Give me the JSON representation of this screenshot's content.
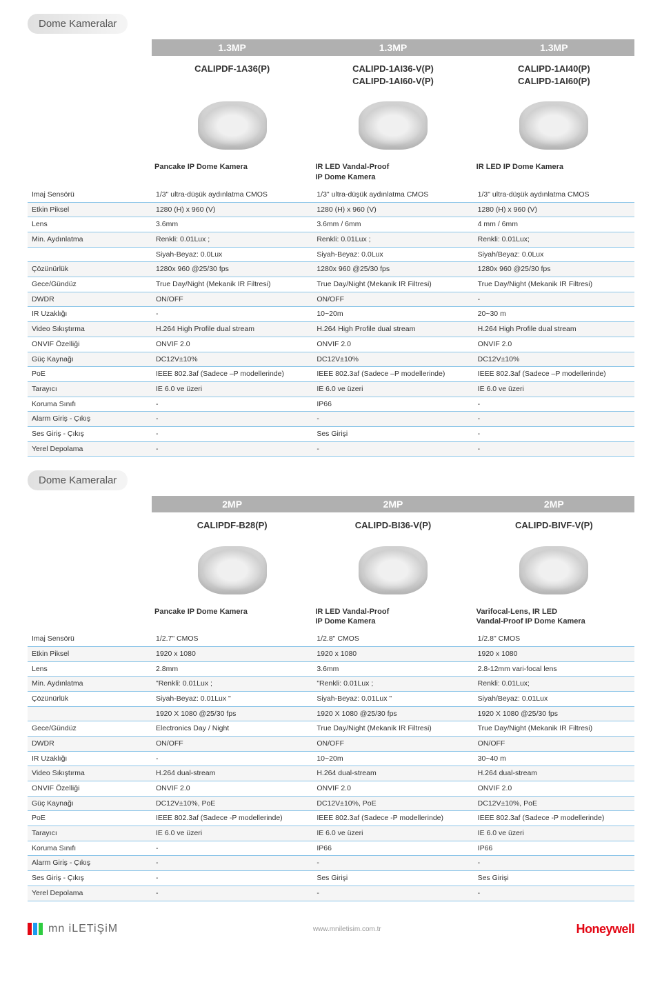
{
  "section1": {
    "title": "Dome Kameralar",
    "mp": [
      "1.3MP",
      "1.3MP",
      "1.3MP"
    ],
    "models": [
      "CALIPDF-1A36(P)",
      "CALIPD-1AI36-V(P)\nCALIPD-1AI60-V(P)",
      "CALIPD-1AI40(P)\nCALIPD-1AI60(P)"
    ],
    "subtitles": [
      "Pancake IP Dome Kamera",
      "IR LED Vandal-Proof\nIP Dome Kamera",
      "IR LED IP Dome Kamera"
    ],
    "rows": [
      [
        "Imaj Sensörü",
        "1/3\" ultra-düşük aydınlatma CMOS",
        "1/3\" ultra-düşük aydınlatma CMOS",
        "1/3\" ultra-düşük aydınlatma CMOS"
      ],
      [
        "Etkin Piksel",
        "1280 (H) x 960 (V)",
        "1280 (H) x 960 (V)",
        "1280 (H) x 960 (V)"
      ],
      [
        "Lens",
        "3.6mm",
        "3.6mm / 6mm",
        "4 mm / 6mm"
      ],
      [
        "Min. Aydınlatma",
        "Renkli: 0.01Lux ;",
        "Renkli: 0.01Lux ;",
        "Renkli: 0.01Lux;"
      ],
      [
        "",
        "Siyah-Beyaz: 0.0Lux",
        "Siyah-Beyaz: 0.0Lux",
        "Siyah/Beyaz: 0.0Lux"
      ],
      [
        "Çözünürlük",
        "1280x 960 @25/30 fps",
        "1280x 960 @25/30 fps",
        "1280x 960 @25/30 fps"
      ],
      [
        "Gece/Gündüz",
        "True Day/Night (Mekanik IR Filtresi)",
        "True Day/Night (Mekanik IR Filtresi)",
        "True Day/Night (Mekanik IR Filtresi)"
      ],
      [
        "DWDR",
        "ON/OFF",
        "ON/OFF",
        "-"
      ],
      [
        "IR Uzaklığı",
        "-",
        "10~20m",
        "20~30 m"
      ],
      [
        "Video Sıkıştırma",
        "H.264 High Profile dual stream",
        "H.264 High Profile dual stream",
        "H.264 High Profile dual stream"
      ],
      [
        "ONVIF Özelliği",
        "ONVIF 2.0",
        "ONVIF 2.0",
        "ONVIF 2.0"
      ],
      [
        "Güç Kaynağı",
        "DC12V±10%",
        "DC12V±10%",
        "DC12V±10%"
      ],
      [
        "PoE",
        "IEEE 802.3af (Sadece –P modellerinde)",
        "IEEE 802.3af (Sadece –P modellerinde)",
        "IEEE 802.3af (Sadece –P modellerinde)"
      ],
      [
        "Tarayıcı",
        "IE 6.0 ve üzeri",
        "IE 6.0 ve üzeri",
        "IE 6.0 ve üzeri"
      ],
      [
        "Koruma Sınıfı",
        "-",
        "IP66",
        "-"
      ],
      [
        "Alarm Giriş - Çıkış",
        "-",
        "-",
        "-"
      ],
      [
        "Ses Giriş - Çıkış",
        "-",
        "Ses Girişi",
        "-"
      ],
      [
        "Yerel Depolama",
        "-",
        "-",
        "-"
      ]
    ]
  },
  "section2": {
    "title": "Dome Kameralar",
    "mp": [
      "2MP",
      "2MP",
      "2MP"
    ],
    "models": [
      "CALIPDF-B28(P)",
      "CALIPD-BI36-V(P)",
      "CALIPD-BIVF-V(P)"
    ],
    "subtitles": [
      "Pancake IP Dome Kamera",
      "IR LED Vandal-Proof\nIP Dome Kamera",
      "Varifocal-Lens, IR LED\nVandal-Proof IP Dome Kamera"
    ],
    "rows": [
      [
        "Imaj Sensörü",
        "1/2.7\" CMOS",
        "1/2.8\" CMOS",
        "1/2.8\" CMOS"
      ],
      [
        "Etkin Piksel",
        "1920 x 1080",
        "1920 x 1080",
        "1920 x 1080"
      ],
      [
        "Lens",
        "2.8mm",
        "3.6mm",
        "2.8-12mm vari-focal lens"
      ],
      [
        "Min. Aydınlatma",
        "\"Renkli: 0.01Lux ;",
        "\"Renkli: 0.01Lux ;",
        "Renkli: 0.01Lux;"
      ],
      [
        "Çözünürlük",
        "Siyah-Beyaz: 0.01Lux \"",
        "Siyah-Beyaz: 0.01Lux \"",
        "Siyah/Beyaz: 0.01Lux"
      ],
      [
        "",
        "1920 X 1080  @25/30 fps",
        "1920 X 1080  @25/30 fps",
        "1920 X 1080  @25/30 fps"
      ],
      [
        "Gece/Gündüz",
        "Electronics Day / Night",
        "True Day/Night (Mekanik IR Filtresi)",
        "True Day/Night (Mekanik IR Filtresi)"
      ],
      [
        "DWDR",
        "ON/OFF",
        "ON/OFF",
        "ON/OFF"
      ],
      [
        "IR Uzaklığı",
        "-",
        "10~20m",
        "30~40 m"
      ],
      [
        "Video Sıkıştırma",
        "H.264 dual-stream",
        "H.264 dual-stream",
        "H.264 dual-stream"
      ],
      [
        "ONVIF Özelliği",
        "ONVIF 2.0",
        "ONVIF 2.0",
        "ONVIF 2.0"
      ],
      [
        "Güç Kaynağı",
        "DC12V±10%, PoE",
        "DC12V±10%, PoE",
        "DC12V±10%, PoE"
      ],
      [
        "PoE",
        "IEEE 802.3af (Sadece -P modellerinde)",
        "IEEE 802.3af (Sadece -P modellerinde)",
        "IEEE 802.3af (Sadece -P modellerinde)"
      ],
      [
        "Tarayıcı",
        "IE 6.0 ve üzeri",
        "IE 6.0 ve üzeri",
        "IE 6.0 ve üzeri"
      ],
      [
        "Koruma Sınıfı",
        "-",
        "IP66",
        "IP66"
      ],
      [
        "Alarm Giriş - Çıkış",
        "-",
        "-",
        "-"
      ],
      [
        "Ses Giriş - Çıkış",
        "-",
        "Ses Girişi",
        "Ses Girişi"
      ],
      [
        "Yerel Depolama",
        "-",
        "-",
        "-"
      ]
    ]
  },
  "footer": {
    "brand": "mn iLETiŞiM",
    "url": "www.mniletisim.com.tr",
    "vendor": "Honeywell"
  },
  "style": {
    "row_border_color": "#8bc5e8",
    "badge_bg": "#b0b0b0",
    "title_bg": "#e0e0e0",
    "honeywell_color": "#e30613"
  }
}
